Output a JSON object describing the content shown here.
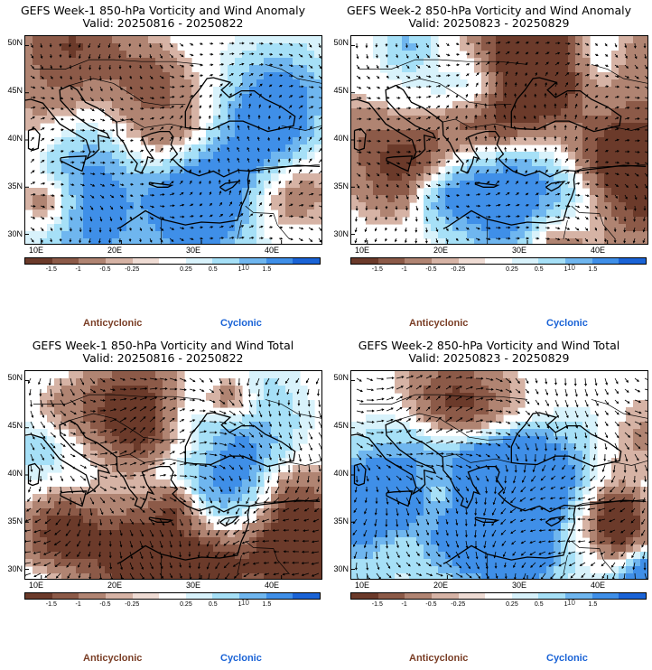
{
  "panels": [
    {
      "title": "GEFS Week-1 850-hPa Vorticity and Wind Anomaly",
      "valid": "Valid: 20250816 - 20250822",
      "kind": "anomaly",
      "seed": 11
    },
    {
      "title": "GEFS Week-2 850-hPa Vorticity and Wind Anomaly",
      "valid": "Valid: 20250823 - 20250829",
      "kind": "anomaly",
      "seed": 23
    },
    {
      "title": "GEFS Week-1 850-hPa Vorticity and Wind Total",
      "valid": "Valid: 20250816 - 20250822",
      "kind": "total",
      "seed": 37
    },
    {
      "title": "GEFS Week-2 850-hPa Vorticity and Wind Total",
      "valid": "Valid: 20250823 - 20250829",
      "kind": "total",
      "seed": 53
    }
  ],
  "axes": {
    "lat_labels": [
      "50N",
      "45N",
      "40N",
      "35N",
      "30N"
    ],
    "lon_labels": [
      "10E",
      "20E",
      "30E",
      "40E"
    ]
  },
  "colorbar": {
    "labels": [
      "-1.5",
      "-1",
      "-0.5",
      "-0.25",
      "0.25",
      "0.5",
      "1",
      "1.5"
    ],
    "ref_vector": "10",
    "colors": [
      "#6b3a2a",
      "#8c5a48",
      "#b08472",
      "#d6b3a5",
      "#efdcd4",
      "#ffffff",
      "#d8f2fb",
      "#a6e0f7",
      "#6fb6ef",
      "#3f8fe8",
      "#1a63d6"
    ]
  },
  "legend": {
    "anticyclonic": "Anticyclonic",
    "cyclonic": "Cyclonic",
    "anticyclonic_color": "#7a3e26",
    "cyclonic_color": "#1a63d6"
  }
}
